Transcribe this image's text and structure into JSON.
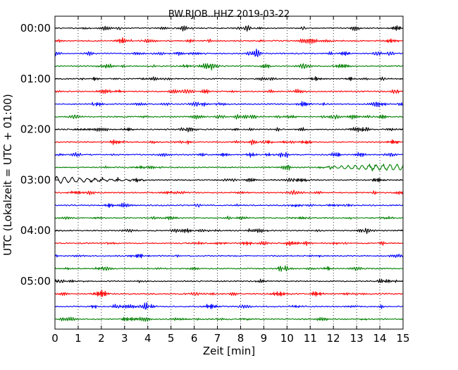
{
  "chart_data": {
    "type": "line",
    "title": "BW.RJOB..HHZ 2019-03-22",
    "xlabel": "Zeit  [min]",
    "ylabel": "UTC (Lokalzeit = UTC + 01:00)",
    "xlim": [
      0,
      15
    ],
    "x_ticks": [
      "0",
      "1",
      "2",
      "3",
      "4",
      "5",
      "6",
      "7",
      "8",
      "9",
      "10",
      "11",
      "12",
      "13",
      "14",
      "15"
    ],
    "y_ticks": [
      "00:00",
      "01:00",
      "02:00",
      "03:00",
      "04:00",
      "05:00"
    ],
    "row_interval_minutes": 15,
    "rows": 24,
    "vertical_grid": "dotted",
    "color_cycle": [
      "#000000",
      "#ff0000",
      "#0000ff",
      "#008000"
    ],
    "notable_features": [
      {
        "row_start": "02:45",
        "from_min": 11.5,
        "to_min": 15,
        "description": "larger slow oscillation"
      },
      {
        "row_start": "03:00",
        "from_min": 0,
        "to_min": 3.9,
        "description": "decaying oscillation"
      }
    ]
  }
}
